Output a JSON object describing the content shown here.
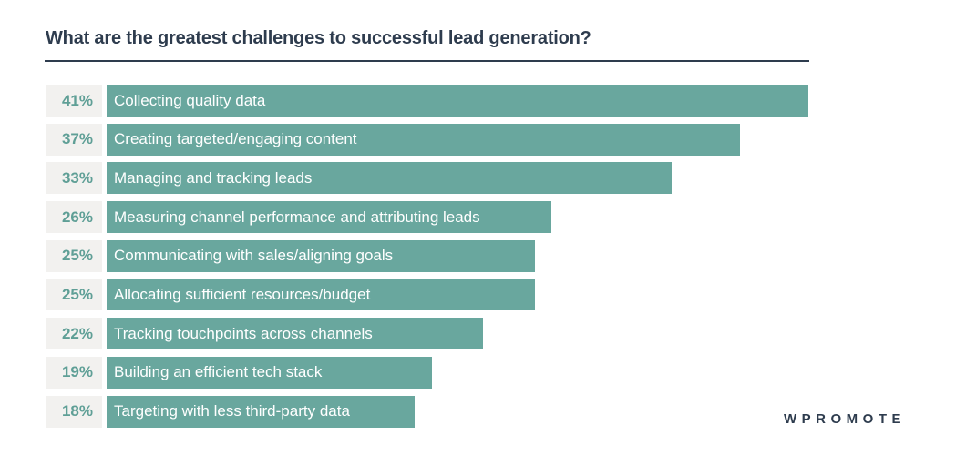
{
  "chart_data": {
    "type": "bar",
    "orientation": "horizontal",
    "title": "What are the greatest challenges to successful lead generation?",
    "categories": [
      "Collecting quality data",
      "Creating targeted/engaging content",
      "Managing and tracking leads",
      "Measuring channel performance and attributing leads",
      "Communicating with sales/aligning goals",
      "Allocating sufficient resources/budget",
      "Tracking touchpoints across channels",
      "Building an efficient tech stack",
      "Targeting with less third-party data"
    ],
    "values": [
      41,
      37,
      33,
      26,
      25,
      25,
      22,
      19,
      18
    ],
    "value_labels": [
      "41%",
      "37%",
      "33%",
      "26%",
      "25%",
      "25%",
      "22%",
      "19%",
      "18%"
    ],
    "unit": "percent",
    "xlim": [
      0,
      41
    ],
    "grid": false,
    "legend": false,
    "bar_color": "#69a79e",
    "bar_label_text_color": "#ffffff",
    "value_label_text_color": "#5f9f96",
    "value_label_bg_color": "#f2f1ef"
  },
  "branding": {
    "logo_text": "WPROMOTE"
  },
  "colors": {
    "navy": "#2e3c4e",
    "teal": "#69a79e",
    "label_chip_bg": "#f2f1ef",
    "background": "#ffffff"
  }
}
